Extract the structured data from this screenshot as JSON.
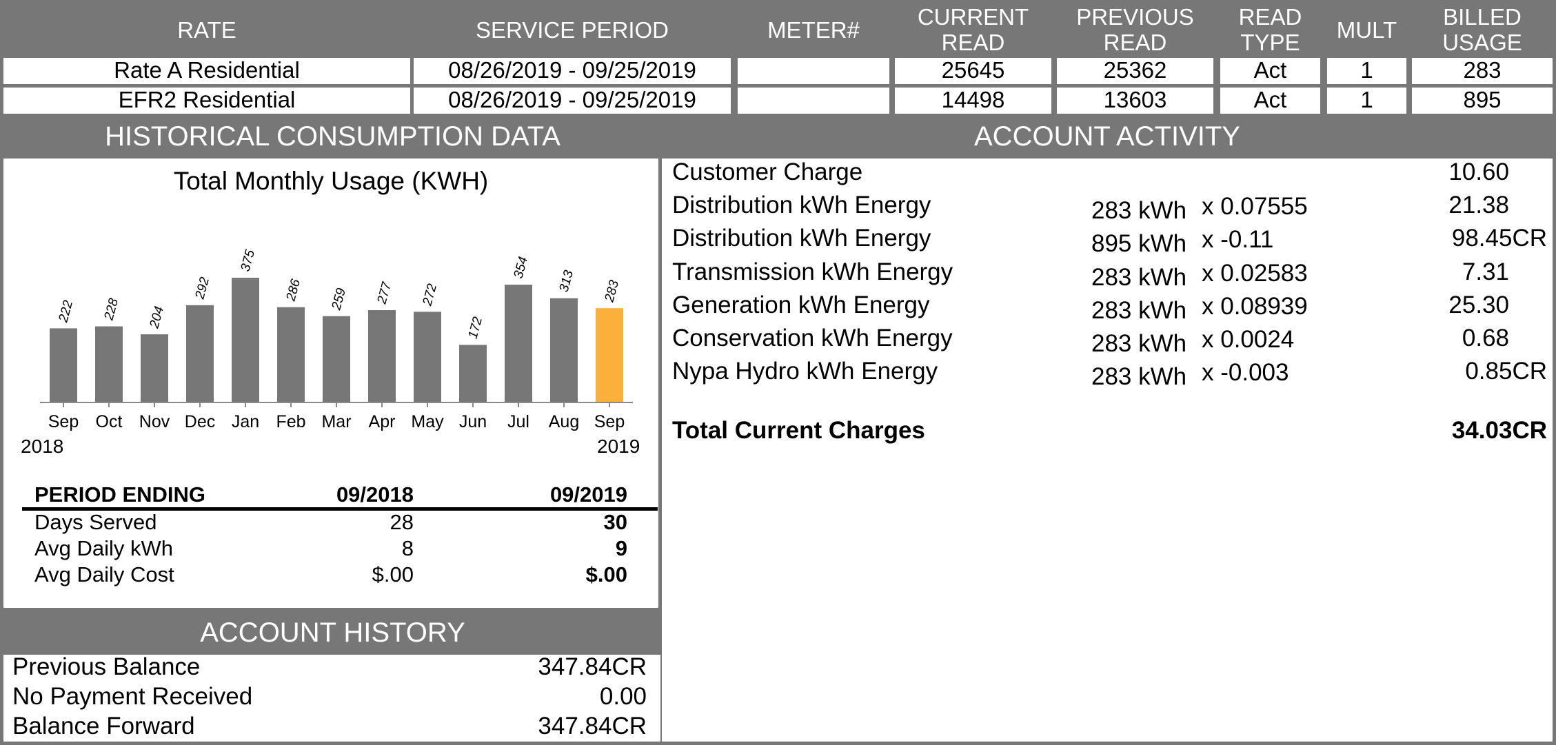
{
  "usage_table": {
    "headers": [
      {
        "key": "rate",
        "lines": [
          "RATE"
        ]
      },
      {
        "key": "service_period",
        "lines": [
          "SERVICE PERIOD"
        ]
      },
      {
        "key": "meter",
        "lines": [
          "METER#"
        ]
      },
      {
        "key": "current_read",
        "lines": [
          "CURRENT",
          "READ"
        ]
      },
      {
        "key": "previous_read",
        "lines": [
          "PREVIOUS",
          "READ"
        ]
      },
      {
        "key": "read_type",
        "lines": [
          "READ",
          "TYPE"
        ]
      },
      {
        "key": "mult",
        "lines": [
          "MULT"
        ]
      },
      {
        "key": "billed_usage",
        "lines": [
          "BILLED",
          "USAGE"
        ]
      }
    ],
    "rows": [
      [
        "Rate A Residential",
        "08/26/2019 - 09/25/2019",
        "",
        "25645",
        "25362",
        "Act",
        "1",
        "283"
      ],
      [
        "EFR2 Residential",
        "08/26/2019 - 09/25/2019",
        "",
        "14498",
        "13603",
        "Act",
        "1",
        "895"
      ]
    ]
  },
  "historical": {
    "section_title": "HISTORICAL CONSUMPTION DATA",
    "start_year": "2018",
    "end_year": "2019",
    "stats": {
      "headers": [
        "PERIOD ENDING",
        "09/2018",
        "09/2019"
      ],
      "rows": [
        [
          "Days Served",
          "28",
          "30"
        ],
        [
          "Avg Daily kWh",
          "8",
          "9"
        ],
        [
          "Avg Daily Cost",
          "$.00",
          "$.00"
        ]
      ]
    }
  },
  "chart_data": {
    "type": "bar",
    "title": "Total Monthly Usage (KWH)",
    "categories": [
      "Sep",
      "Oct",
      "Nov",
      "Dec",
      "Jan",
      "Feb",
      "Mar",
      "Apr",
      "May",
      "Jun",
      "Jul",
      "Aug",
      "Sep"
    ],
    "values": [
      222,
      228,
      204,
      292,
      375,
      286,
      259,
      277,
      272,
      172,
      354,
      313,
      283
    ],
    "highlight_index": 12,
    "colors": {
      "bar": "#777777",
      "highlight": "#FBB03B"
    },
    "ylim": [
      0,
      400
    ]
  },
  "account_activity": {
    "section_title": "ACCOUNT ACTIVITY",
    "items": [
      {
        "label": "Customer Charge",
        "kwh": "",
        "rate": "",
        "amount": "10.60"
      },
      {
        "label": "Distribution kWh Energy",
        "kwh": "283 kWh",
        "rate": "x 0.07555",
        "amount": "21.38"
      },
      {
        "label": "Distribution kWh Energy",
        "kwh": "895 kWh",
        "rate": "x -0.11",
        "amount": "98.45CR"
      },
      {
        "label": "Transmission kWh Energy",
        "kwh": "283 kWh",
        "rate": "x 0.02583",
        "amount": "7.31"
      },
      {
        "label": "Generation kWh Energy",
        "kwh": "283 kWh",
        "rate": "x 0.08939",
        "amount": "25.30"
      },
      {
        "label": "Conservation kWh Energy",
        "kwh": "283 kWh",
        "rate": "x 0.0024",
        "amount": "0.68"
      },
      {
        "label": "Nypa Hydro kWh Energy",
        "kwh": "283 kWh",
        "rate": "x -0.003",
        "amount": "0.85CR"
      }
    ],
    "total_label": "Total Current Charges",
    "total_amount": "34.03CR"
  },
  "account_history": {
    "section_title": "ACCOUNT HISTORY",
    "items": [
      {
        "label": "Previous Balance",
        "amount": "347.84CR"
      },
      {
        "label": "No Payment Received",
        "amount": "0.00"
      },
      {
        "label": "Balance Forward",
        "amount": "347.84CR"
      }
    ]
  }
}
